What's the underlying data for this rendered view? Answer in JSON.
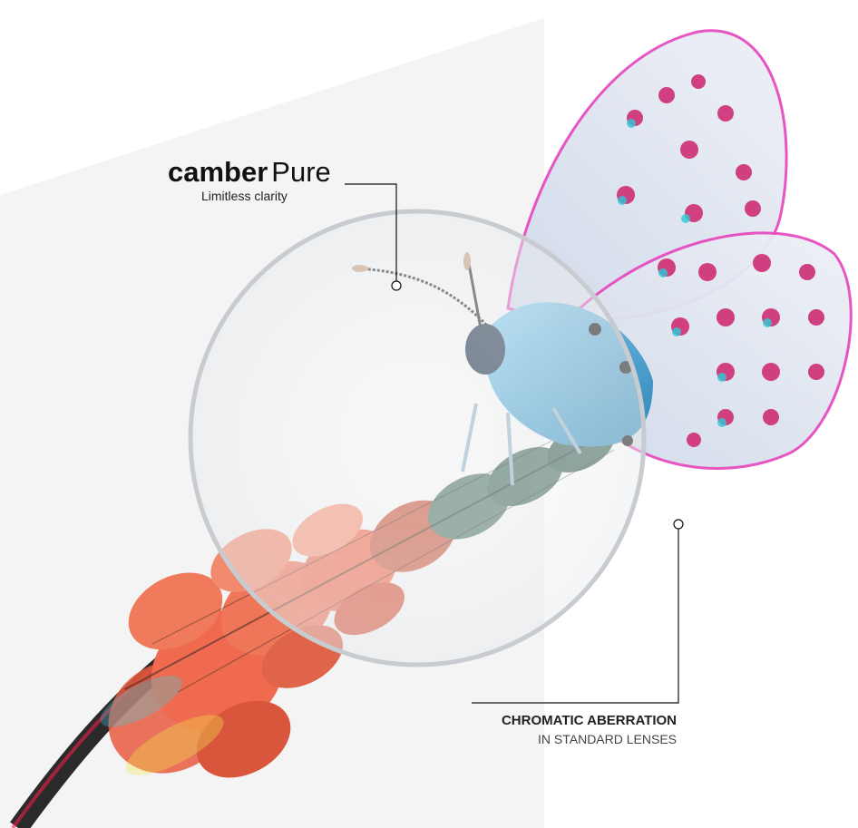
{
  "brand": {
    "name_bold": "camber",
    "name_light": "Pure",
    "tagline": "Limitless clarity"
  },
  "callout": {
    "title": "CHROMATIC ABERRATION",
    "subtitle": "IN STANDARD LENSES"
  }
}
